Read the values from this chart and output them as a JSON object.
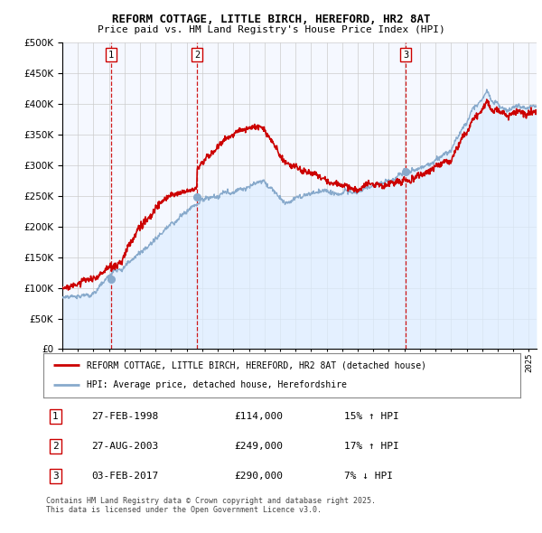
{
  "title": "REFORM COTTAGE, LITTLE BIRCH, HEREFORD, HR2 8AT",
  "subtitle": "Price paid vs. HM Land Registry's House Price Index (HPI)",
  "legend_property": "REFORM COTTAGE, LITTLE BIRCH, HEREFORD, HR2 8AT (detached house)",
  "legend_hpi": "HPI: Average price, detached house, Herefordshire",
  "property_color": "#cc0000",
  "hpi_color": "#88aacc",
  "hpi_fill_color": "#ddeeff",
  "vline_color": "#cc0000",
  "footnote": "Contains HM Land Registry data © Crown copyright and database right 2025.\nThis data is licensed under the Open Government Licence v3.0.",
  "ylim": [
    0,
    500000
  ],
  "yticks": [
    0,
    50000,
    100000,
    150000,
    200000,
    250000,
    300000,
    350000,
    400000,
    450000,
    500000
  ],
  "sales": [
    {
      "date_num": 1998.15,
      "price": 114000,
      "label": "1",
      "pct": "15%",
      "dir": "↑",
      "date_str": "27-FEB-1998"
    },
    {
      "date_num": 2003.65,
      "price": 249000,
      "label": "2",
      "pct": "17%",
      "dir": "↑",
      "date_str": "27-AUG-2003"
    },
    {
      "date_num": 2017.08,
      "price": 290000,
      "label": "3",
      "pct": "7%",
      "dir": "↓",
      "date_str": "03-FEB-2017"
    }
  ],
  "xmin": 1995.0,
  "xmax": 2025.5
}
